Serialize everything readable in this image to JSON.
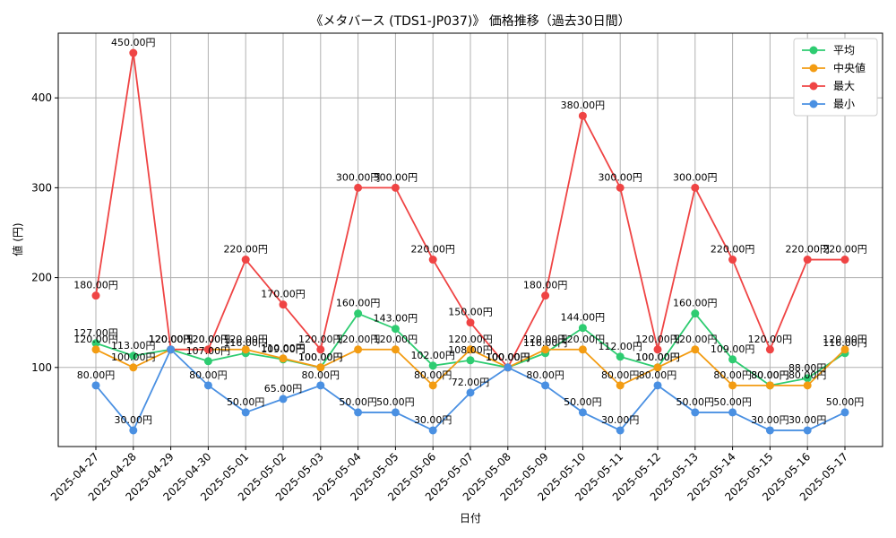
{
  "chart_data": {
    "type": "line",
    "title": "《メタバース (TDS1-JP037)》 価格推移（過去30日間）",
    "xlabel": "日付",
    "ylabel": "値 (円)",
    "ylim": [
      12,
      472
    ],
    "yticks": [
      100,
      200,
      300,
      400
    ],
    "grid": true,
    "legend_position": "top-right",
    "categories": [
      "2025-04-27",
      "2025-04-28",
      "2025-04-29",
      "2025-04-30",
      "2025-05-01",
      "2025-05-02",
      "2025-05-03",
      "2025-05-04",
      "2025-05-05",
      "2025-05-06",
      "2025-05-07",
      "2025-05-08",
      "2025-05-09",
      "2025-05-10",
      "2025-05-11",
      "2025-05-12",
      "2025-05-13",
      "2025-05-14",
      "2025-05-15",
      "2025-05-16",
      "2025-05-17"
    ],
    "value_suffix": "円",
    "series": [
      {
        "name": "平均",
        "color": "#2ecc71",
        "values": [
          127,
          113,
          120,
          107,
          116,
          109,
          100,
          160,
          143,
          102,
          108,
          100,
          116,
          144,
          112,
          100,
          160,
          109,
          80,
          88,
          116
        ]
      },
      {
        "name": "中央値",
        "color": "#f39c12",
        "values": [
          120,
          100,
          120,
          120,
          120,
          110,
          100,
          120,
          120,
          80,
          120,
          100,
          120,
          120,
          80,
          100,
          120,
          80,
          80,
          80,
          120
        ]
      },
      {
        "name": "最大",
        "color": "#ef4444",
        "values": [
          180,
          450,
          120,
          120,
          220,
          170,
          120,
          300,
          300,
          220,
          150,
          100,
          180,
          380,
          300,
          120,
          300,
          220,
          120,
          220,
          220
        ]
      },
      {
        "name": "最小",
        "color": "#4a90e2",
        "values": [
          80,
          30,
          120,
          80,
          50,
          65,
          80,
          50,
          50,
          30,
          72,
          100,
          80,
          50,
          30,
          80,
          50,
          50,
          30,
          30,
          50
        ]
      }
    ]
  }
}
